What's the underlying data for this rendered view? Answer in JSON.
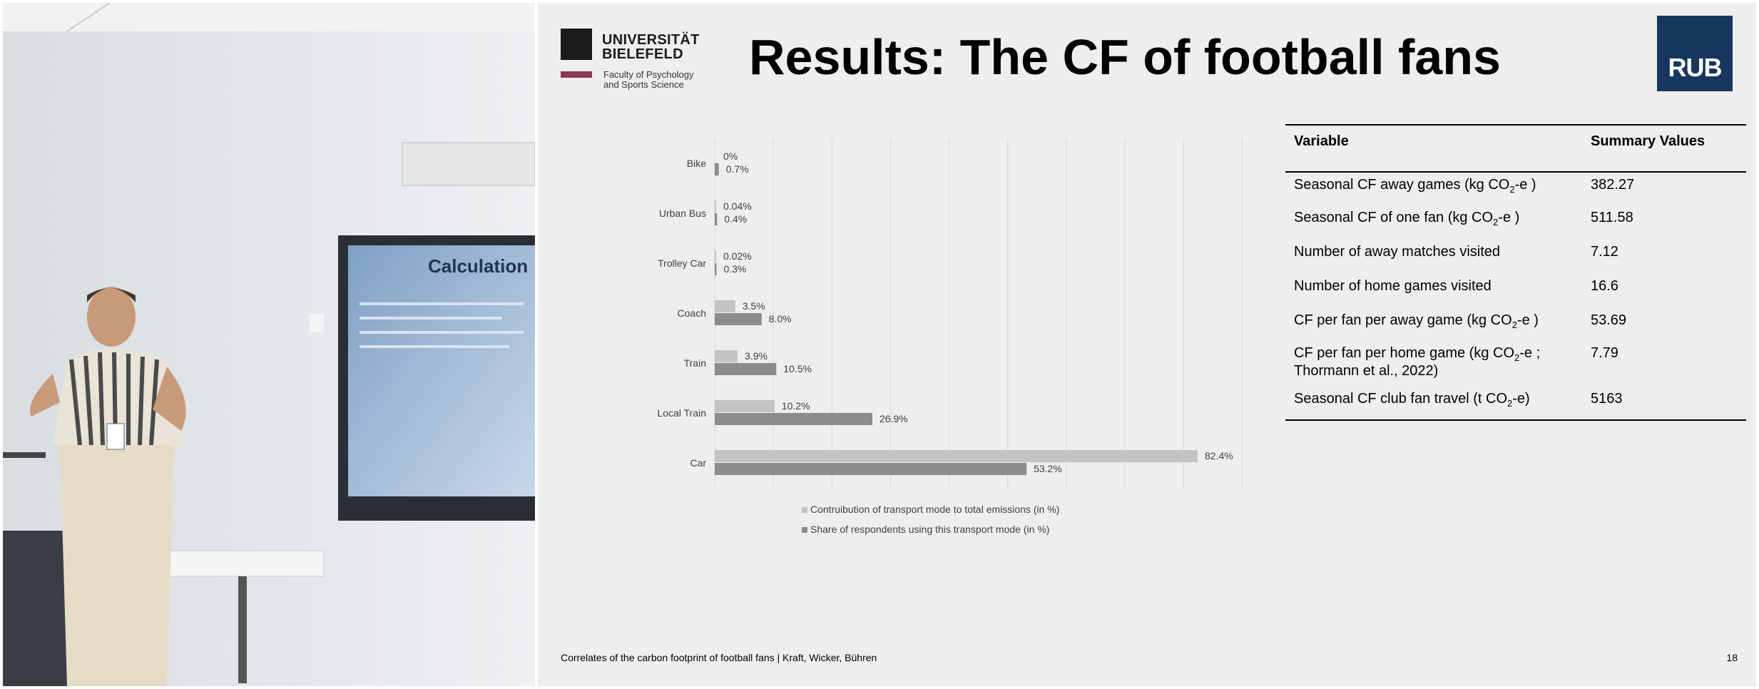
{
  "slide": {
    "title": "Results: The CF of football fans",
    "logo": {
      "line1": "UNIVERSITÄT",
      "line2": "BIELEFELD",
      "line3": "Faculty of Psychology",
      "line4": "and Sports Science"
    },
    "rub_logo": "RUB",
    "footer": "Correlates of the carbon footprint of football fans | Kraft, Wicker, Bühren",
    "page_number": "18"
  },
  "projected_screen": {
    "title": "Calculation"
  },
  "table": {
    "headers": [
      "Variable",
      "Summary Values"
    ],
    "rows": [
      {
        "variable": "Seasonal CF away games (kg CO",
        "sub": "2",
        "suffix": "-e )",
        "value": "382.27"
      },
      {
        "variable": "Seasonal CF of one fan (kg CO",
        "sub": "2",
        "suffix": "-e )",
        "value": "511.58"
      },
      {
        "variable": "Number of away matches visited",
        "sub": "",
        "suffix": "",
        "value": "7.12"
      },
      {
        "variable": "Number of home games visited",
        "sub": "",
        "suffix": "",
        "value": "16.6"
      },
      {
        "variable": "CF per fan per away game (kg CO",
        "sub": "2",
        "suffix": "-e )",
        "value": "53.69"
      },
      {
        "variable": "CF per fan per home game (kg CO",
        "sub": "2",
        "suffix": "-e ;",
        "line2": "Thormann et al., 2022)",
        "value": "7.79"
      },
      {
        "variable": "Seasonal CF club fan travel (t CO",
        "sub": "2",
        "suffix": "-e)",
        "value": "5163"
      }
    ]
  },
  "chart_data": {
    "type": "bar",
    "orientation": "horizontal",
    "categories": [
      "Bike",
      "Urban Bus",
      "Trolley Car",
      "Coach",
      "Train",
      "Local Train",
      "Car"
    ],
    "series": [
      {
        "name": "Contruibution of transport mode to total emissions (in %)",
        "values": [
          0,
          0.04,
          0.02,
          3.5,
          3.9,
          10.2,
          82.4
        ],
        "labels": [
          "0%",
          "0.04%",
          "0.02%",
          "3.5%",
          "3.9%",
          "10.2%",
          "82.4%"
        ],
        "color": "#c3c3c3"
      },
      {
        "name": "Share of respondents using this transport mode (in %)",
        "values": [
          0.7,
          0.4,
          0.3,
          8.0,
          10.5,
          26.9,
          53.2
        ],
        "labels": [
          "0.7%",
          "0.4%",
          "0.3%",
          "8.0%",
          "10.5%",
          "26.9%",
          "53.2%"
        ],
        "color": "#8c8c8c"
      }
    ],
    "xlim": [
      0,
      90
    ],
    "grid": true,
    "legend_position": "bottom"
  }
}
